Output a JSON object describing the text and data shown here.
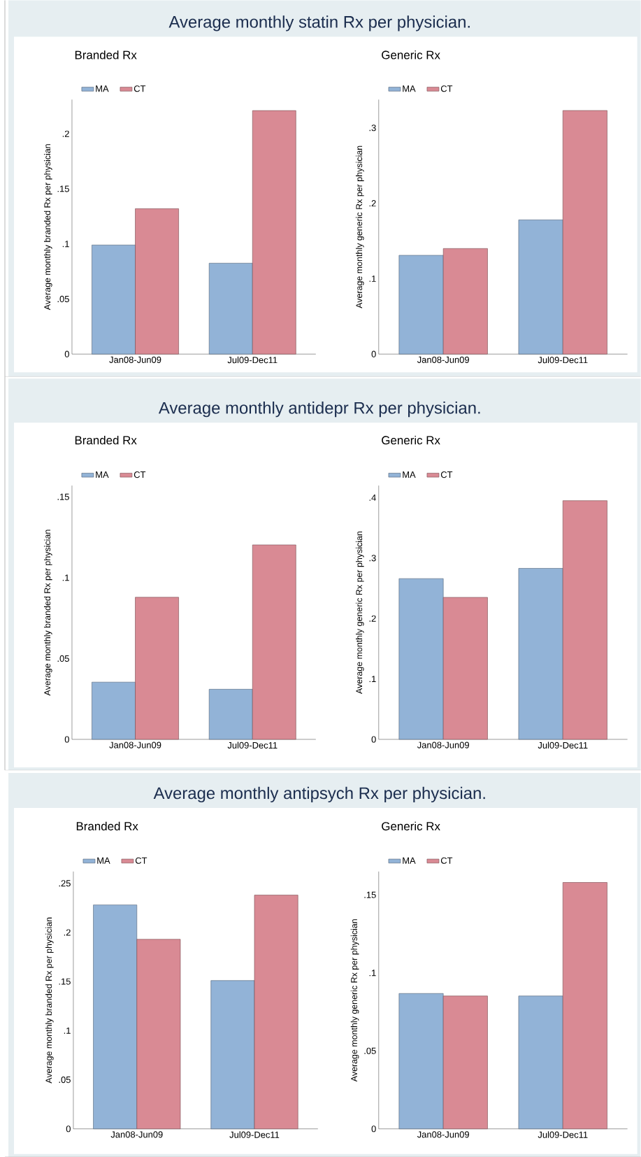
{
  "chart_data": [
    {
      "type": "bar",
      "title": "Average monthly statin Rx per physician.",
      "subtitle": "Branded Rx",
      "ylabel": "Average monthly branded Rx per physician",
      "categories": [
        "Jan08-Jun09",
        "Jul09-Dec11"
      ],
      "legend": "top left",
      "ylim": [
        0,
        0.231
      ],
      "yticks": [
        0,
        {
          "value": 0.05,
          "label": ".05"
        },
        {
          "value": 0.1,
          "label": ".1"
        },
        {
          "value": 0.15,
          "label": ".15"
        },
        {
          "value": 0.2,
          "label": ".2"
        }
      ],
      "series": [
        {
          "name": "MA",
          "color": "#92b3d7",
          "values": [
            0.099,
            0.0825
          ]
        },
        {
          "name": "CT",
          "color": "#d98a94",
          "values": [
            0.132,
            0.221
          ]
        }
      ]
    },
    {
      "type": "bar",
      "subtitle": "Generic Rx",
      "ylabel": "Average monthly generic Rx per physician",
      "categories": [
        "Jan08-Jun09",
        "Jul09-Dec11"
      ],
      "legend": "top left",
      "ylim": [
        0,
        0.3375
      ],
      "yticks": [
        0,
        {
          "value": 0.1,
          "label": ".1"
        },
        {
          "value": 0.2,
          "label": ".2"
        },
        {
          "value": 0.3,
          "label": ".3"
        }
      ],
      "series": [
        {
          "name": "MA",
          "color": "#92b3d7",
          "values": [
            0.131,
            0.178
          ]
        },
        {
          "name": "CT",
          "color": "#d98a94",
          "values": [
            0.14,
            0.323
          ]
        }
      ]
    },
    {
      "type": "bar",
      "title": "Average monthly antidepr Rx per physician.",
      "subtitle": "Branded Rx",
      "ylabel": "Average monthly branded Rx per physician",
      "categories": [
        "Jan08-Jun09",
        "Jul09-Dec11"
      ],
      "legend": "top left",
      "ylim": [
        0,
        0.157
      ],
      "yticks": [
        0,
        {
          "value": 0.05,
          "label": ".05"
        },
        {
          "value": 0.1,
          "label": ".1"
        },
        {
          "value": 0.15,
          "label": ".15"
        }
      ],
      "series": [
        {
          "name": "MA",
          "color": "#92b3d7",
          "values": [
            0.0354,
            0.031
          ]
        },
        {
          "name": "CT",
          "color": "#d98a94",
          "values": [
            0.0879,
            0.1203
          ]
        }
      ]
    },
    {
      "type": "bar",
      "subtitle": "Generic Rx",
      "ylabel": "Average monthly generic Rx per physician",
      "categories": [
        "Jan08-Jun09",
        "Jul09-Dec11"
      ],
      "legend": "top left",
      "ylim": [
        0,
        0.42
      ],
      "yticks": [
        0,
        {
          "value": 0.1,
          "label": ".1"
        },
        {
          "value": 0.2,
          "label": ".2"
        },
        {
          "value": 0.3,
          "label": ".3"
        },
        {
          "value": 0.4,
          "label": ".4"
        }
      ],
      "series": [
        {
          "name": "MA",
          "color": "#92b3d7",
          "values": [
            0.266,
            0.283
          ]
        },
        {
          "name": "CT",
          "color": "#d98a94",
          "values": [
            0.235,
            0.395
          ]
        }
      ]
    },
    {
      "type": "bar",
      "title": "Average monthly antipsych Rx per physician.",
      "subtitle": "Branded Rx",
      "ylabel": "Average monthly branded Rx per physician",
      "categories": [
        "Jan08-Jun09",
        "Jul09-Dec11"
      ],
      "legend": "top left",
      "ylim": [
        0,
        0.262
      ],
      "yticks": [
        0,
        {
          "value": 0.05,
          "label": ".05"
        },
        {
          "value": 0.1,
          "label": ".1"
        },
        {
          "value": 0.15,
          "label": ".15"
        },
        {
          "value": 0.2,
          "label": ".2"
        },
        {
          "value": 0.25,
          "label": ".25"
        }
      ],
      "series": [
        {
          "name": "MA",
          "color": "#92b3d7",
          "values": [
            0.228,
            0.151
          ]
        },
        {
          "name": "CT",
          "color": "#d98a94",
          "values": [
            0.193,
            0.238
          ]
        }
      ]
    },
    {
      "type": "bar",
      "subtitle": "Generic Rx",
      "ylabel": "Average monthly generic Rx per physician",
      "categories": [
        "Jan08-Jun09",
        "Jul09-Dec11"
      ],
      "legend": "top left",
      "ylim": [
        0,
        0.165
      ],
      "yticks": [
        0,
        {
          "value": 0.05,
          "label": ".05"
        },
        {
          "value": 0.1,
          "label": ".1"
        },
        {
          "value": 0.15,
          "label": ".15"
        }
      ],
      "series": [
        {
          "name": "MA",
          "color": "#92b3d7",
          "values": [
            0.0868,
            0.0852
          ]
        },
        {
          "name": "CT",
          "color": "#d98a94",
          "values": [
            0.0852,
            0.158
          ]
        }
      ]
    }
  ]
}
